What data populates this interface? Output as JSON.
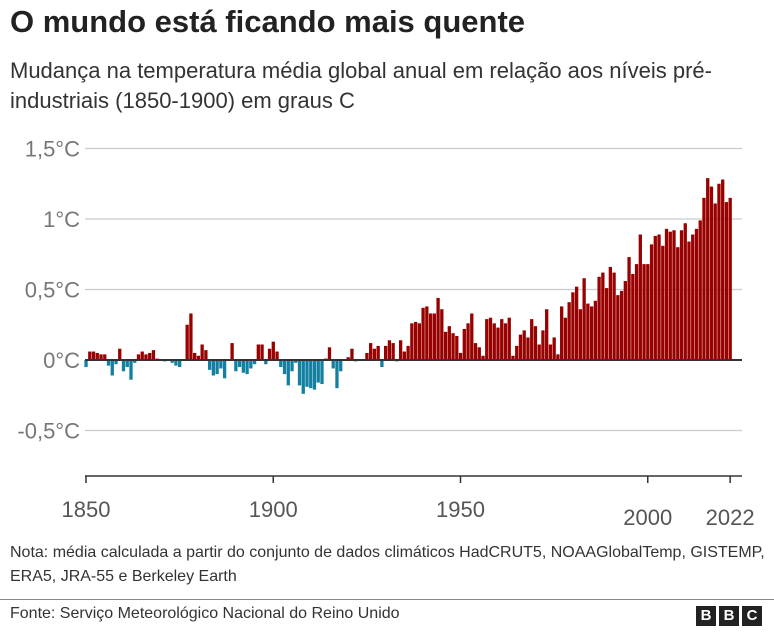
{
  "title": "O mundo está ficando mais quente",
  "subtitle": "Mudança na temperatura média global anual em relação aos níveis pré-industriais (1850-1900) em graus C",
  "note": "Nota: média calculada a partir do conjunto de dados climáticos HadCRUT5, NOAAGlobalTemp, GISTEMP, ERA5, JRA-55 e Berkeley Earth",
  "source": "Fonte: Serviço Meteorológico Nacional do Reino Unido",
  "logo": [
    "B",
    "B",
    "C"
  ],
  "colors": {
    "positive": "#990000",
    "negative": "#1380a1",
    "zero_line": "#333333",
    "grid": "#cccccc"
  },
  "chart_data": {
    "type": "bar",
    "xlabel": "",
    "ylabel": "",
    "ylim": [
      -0.8,
      1.6
    ],
    "grid": true,
    "y_ticks": [
      {
        "value": 1.5,
        "label": "1,5°C"
      },
      {
        "value": 1,
        "label": "1°C"
      },
      {
        "value": 0.5,
        "label": "0,5°C"
      },
      {
        "value": 0,
        "label": "0°C"
      },
      {
        "value": -0.5,
        "label": "-0,5°C"
      }
    ],
    "x_ticks": [
      {
        "value": 1850,
        "label": "1850"
      },
      {
        "value": 1900,
        "label": "1900"
      },
      {
        "value": 1950,
        "label": "1950"
      },
      {
        "value": 2000,
        "label": "2000"
      },
      {
        "value": 2022,
        "label": "2022"
      }
    ],
    "start_year": 1850,
    "values": [
      -0.05,
      0.06,
      0.06,
      0.05,
      0.04,
      0.04,
      -0.04,
      -0.11,
      -0.03,
      0.08,
      -0.08,
      -0.05,
      -0.14,
      -0.02,
      0.04,
      0.06,
      0.04,
      0.05,
      0.07,
      0.01,
      0.0,
      -0.01,
      0.0,
      -0.02,
      -0.04,
      -0.05,
      0.0,
      0.25,
      0.33,
      0.05,
      0.03,
      0.11,
      0.07,
      -0.07,
      -0.11,
      -0.1,
      -0.06,
      -0.13,
      0.0,
      0.12,
      -0.08,
      -0.05,
      -0.09,
      -0.1,
      -0.06,
      -0.03,
      0.11,
      0.11,
      -0.03,
      0.08,
      0.13,
      0.06,
      -0.05,
      -0.1,
      -0.18,
      -0.08,
      -0.02,
      -0.18,
      -0.24,
      -0.19,
      -0.2,
      -0.21,
      -0.16,
      -0.17,
      0.01,
      0.09,
      -0.06,
      -0.2,
      -0.08,
      0.0,
      0.02,
      0.08,
      -0.01,
      0.0,
      0.0,
      0.05,
      0.12,
      0.08,
      0.1,
      -0.05,
      0.1,
      0.14,
      0.12,
      -0.01,
      0.14,
      0.06,
      0.1,
      0.26,
      0.27,
      0.26,
      0.37,
      0.38,
      0.33,
      0.33,
      0.44,
      0.36,
      0.2,
      0.24,
      0.19,
      0.17,
      0.05,
      0.22,
      0.26,
      0.33,
      0.12,
      0.09,
      0.03,
      0.29,
      0.3,
      0.26,
      0.23,
      0.29,
      0.26,
      0.3,
      0.03,
      0.1,
      0.18,
      0.21,
      0.16,
      0.29,
      0.24,
      0.11,
      0.21,
      0.36,
      0.11,
      0.16,
      0.04,
      0.38,
      0.3,
      0.41,
      0.48,
      0.52,
      0.36,
      0.58,
      0.4,
      0.38,
      0.42,
      0.59,
      0.62,
      0.51,
      0.66,
      0.62,
      0.46,
      0.49,
      0.56,
      0.73,
      0.61,
      0.68,
      0.89,
      0.68,
      0.68,
      0.82,
      0.88,
      0.89,
      0.81,
      0.93,
      0.91,
      0.92,
      0.8,
      0.92,
      0.97,
      0.84,
      0.89,
      0.93,
      0.99,
      1.15,
      1.29,
      1.23,
      1.11,
      1.25,
      1.28,
      1.12,
      1.15
    ]
  }
}
